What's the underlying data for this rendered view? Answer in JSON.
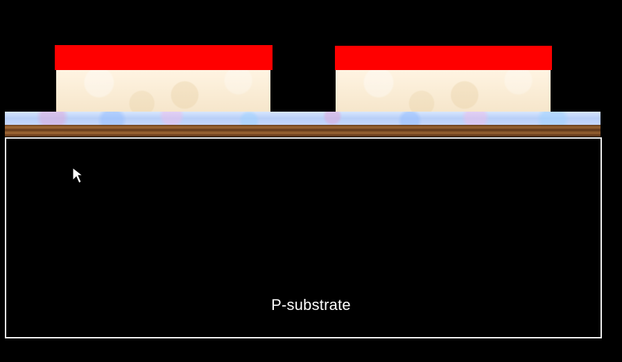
{
  "diagram": {
    "substrate_label": "P-substrate"
  },
  "colors": {
    "background": "#000000",
    "top_layer": "#ff0000",
    "substrate_border": "#f2f2f2"
  },
  "icons": {
    "pointer": "mouse-pointer-icon"
  }
}
